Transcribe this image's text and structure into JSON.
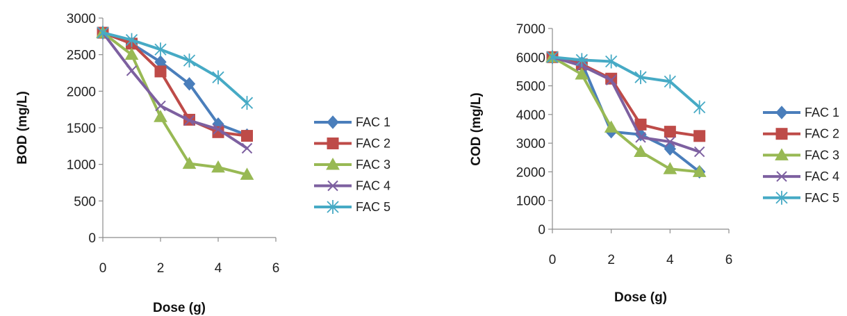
{
  "colors": {
    "FAC 1": "#4a7ebb",
    "FAC 2": "#be4b48",
    "FAC 3": "#98b954",
    "FAC 4": "#7d60a0",
    "FAC 5": "#46aac5"
  },
  "markers": {
    "FAC 1": "diamond",
    "FAC 2": "square",
    "FAC 3": "triangle",
    "FAC 4": "x",
    "FAC 5": "star"
  },
  "chart_data": [
    {
      "type": "line",
      "title": "",
      "xlabel": "Dose (g)",
      "ylabel": "BOD (mg/L)",
      "xlim": [
        0,
        6
      ],
      "ylim": [
        0,
        3000
      ],
      "xticks": [
        0,
        2,
        4,
        6
      ],
      "yticks": [
        0,
        500,
        1000,
        1500,
        2000,
        2500,
        3000
      ],
      "grid": false,
      "legend": "right",
      "x": [
        0,
        1,
        2,
        3,
        4,
        5
      ],
      "series": [
        {
          "name": "FAC 1",
          "values": [
            2800,
            2650,
            2400,
            2100,
            1550,
            1400
          ]
        },
        {
          "name": "FAC 2",
          "values": [
            2800,
            2650,
            2270,
            1610,
            1440,
            1390
          ]
        },
        {
          "name": "FAC 3",
          "values": [
            2800,
            2500,
            1650,
            1010,
            960,
            860
          ]
        },
        {
          "name": "FAC 4",
          "values": [
            2800,
            2280,
            1800,
            1600,
            1480,
            1220
          ]
        },
        {
          "name": "FAC 5",
          "values": [
            2800,
            2700,
            2570,
            2420,
            2190,
            1840
          ]
        }
      ]
    },
    {
      "type": "line",
      "title": "",
      "xlabel": "Dose (g)",
      "ylabel": "COD (mg/L)",
      "xlim": [
        0,
        6
      ],
      "ylim": [
        0,
        7000
      ],
      "xticks": [
        0,
        2,
        4,
        6
      ],
      "yticks": [
        0,
        1000,
        2000,
        3000,
        4000,
        5000,
        6000,
        7000
      ],
      "grid": false,
      "legend": "right",
      "x": [
        0,
        1,
        2,
        3,
        4,
        5
      ],
      "series": [
        {
          "name": "FAC 1",
          "values": [
            6000,
            5800,
            3400,
            3300,
            2800,
            2000
          ]
        },
        {
          "name": "FAC 2",
          "values": [
            6000,
            5750,
            5250,
            3650,
            3400,
            3250
          ]
        },
        {
          "name": "FAC 3",
          "values": [
            6000,
            5400,
            3550,
            2700,
            2100,
            2000
          ]
        },
        {
          "name": "FAC 4",
          "values": [
            6000,
            5700,
            5200,
            3200,
            3050,
            2700
          ]
        },
        {
          "name": "FAC 5",
          "values": [
            6000,
            5900,
            5850,
            5300,
            5150,
            4250
          ]
        }
      ]
    }
  ]
}
